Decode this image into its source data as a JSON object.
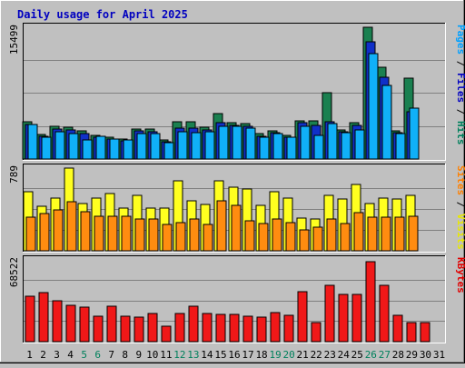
{
  "chart_data": {
    "type": "bar",
    "title": "Daily usage for April 2025",
    "categories": [
      "1",
      "2",
      "3",
      "4",
      "5",
      "6",
      "7",
      "8",
      "9",
      "10",
      "11",
      "12",
      "13",
      "14",
      "15",
      "16",
      "17",
      "18",
      "19",
      "20",
      "21",
      "22",
      "23",
      "24",
      "25",
      "26",
      "27",
      "28",
      "29",
      "30",
      "31"
    ],
    "weekend_days": [
      "5",
      "6",
      "12",
      "13",
      "19",
      "20",
      "26",
      "27"
    ],
    "panels": [
      {
        "key": "top",
        "ymax": 15499,
        "ymax_label": "15499",
        "legend": [
          {
            "text": "Pages",
            "color": "#00a0ff"
          },
          {
            "text": " / ",
            "color": "#000000"
          },
          {
            "text": "Files",
            "color": "#0000c0"
          },
          {
            "text": " / ",
            "color": "#000000"
          },
          {
            "text": "Hits",
            "color": "#00805c"
          }
        ],
        "series": [
          {
            "name": "Hits",
            "color": "#1a8050",
            "values": [
              4300,
              2900,
              3800,
              3700,
              3300,
              2800,
              2500,
              2300,
              3500,
              3500,
              2200,
              4300,
              4300,
              3700,
              5300,
              4200,
              4100,
              3000,
              3300,
              2800,
              4500,
              4500,
              7700,
              3400,
              4200,
              15400,
              10700,
              3300,
              9400,
              0,
              0
            ]
          },
          {
            "name": "Files",
            "color": "#1030c8",
            "values": [
              4000,
              2700,
              3500,
              3400,
              3000,
              2600,
              2300,
              2100,
              3300,
              3200,
              2000,
              3600,
              3600,
              3400,
              4200,
              3900,
              3800,
              2700,
              3100,
              2600,
              4200,
              3900,
              4300,
              3200,
              3900,
              13700,
              9600,
              3100,
              5500,
              0,
              0
            ]
          },
          {
            "name": "Pages",
            "color": "#10b0f8",
            "values": [
              4000,
              2500,
              3200,
              3000,
              2200,
              2700,
              2300,
              2200,
              3000,
              3000,
              1900,
              3200,
              3100,
              3200,
              3800,
              3800,
              3600,
              2500,
              3000,
              2600,
              3800,
              2800,
              4100,
              3100,
              3400,
              12300,
              8600,
              3000,
              5900,
              0,
              0
            ]
          }
        ]
      },
      {
        "key": "middle",
        "ymax": 789,
        "ymax_label": "789",
        "legend": [
          {
            "text": "Sites",
            "color": "#ff8000"
          },
          {
            "text": " / ",
            "color": "#000000"
          },
          {
            "text": "Visits",
            "color": "#e8e800"
          }
        ],
        "series": [
          {
            "name": "Visits",
            "color": "#ffff20",
            "values": [
              560,
              420,
              500,
              780,
              450,
              500,
              540,
              400,
              520,
              400,
              400,
              660,
              470,
              440,
              660,
              600,
              580,
              430,
              560,
              500,
              310,
              300,
              520,
              490,
              630,
              450,
              500,
              490,
              520,
              0,
              0
            ]
          },
          {
            "name": "Sites",
            "color": "#ff8c10",
            "values": [
              320,
              350,
              390,
              460,
              370,
              330,
              330,
              330,
              300,
              300,
              250,
              270,
              300,
              250,
              470,
              430,
              280,
              260,
              300,
              270,
              200,
              220,
              300,
              260,
              360,
              320,
              320,
              320,
              330,
              0,
              0
            ]
          }
        ]
      },
      {
        "key": "bottom",
        "ymax": 68522,
        "ymax_label": "68522",
        "legend": [
          {
            "text": "KBytes",
            "color": "#e00000"
          }
        ],
        "series": [
          {
            "name": "KBytes",
            "color": "#f01818",
            "values": [
              38000,
              41000,
              34000,
              30000,
              28500,
              21000,
              29000,
              21000,
              20000,
              23500,
              13000,
              23500,
              29500,
              23000,
              22500,
              22500,
              21000,
              20500,
              24000,
              21500,
              41500,
              15500,
              47000,
              39500,
              39500,
              66500,
              46500,
              21500,
              16000,
              16000,
              0
            ]
          }
        ]
      }
    ]
  }
}
